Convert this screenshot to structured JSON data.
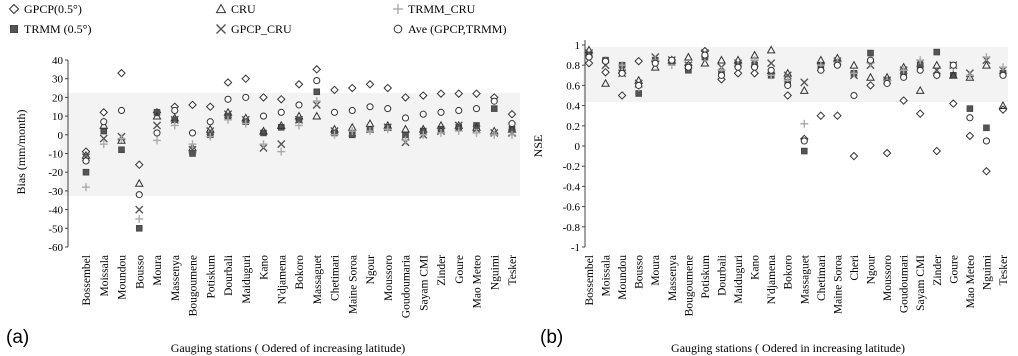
{
  "legend": [
    {
      "key": "gpcp",
      "label": "GPCP(0.5°)",
      "marker": "diamond"
    },
    {
      "key": "trmm",
      "label": "TRMM (0.5°)",
      "marker": "square"
    },
    {
      "key": "cru",
      "label": "CRU",
      "marker": "triangle"
    },
    {
      "key": "gpcp_cru",
      "label": "GPCP_CRU",
      "marker": "x"
    },
    {
      "key": "trmm_cru",
      "label": "TRMM_CRU",
      "marker": "plus"
    },
    {
      "key": "ave",
      "label": "Ave (GPCP,TRMM)",
      "marker": "circle"
    }
  ],
  "chart_data": [
    {
      "type": "scatter",
      "panel_label": "(a)",
      "xlabel": "Gauging stations ( Odered of increasing latitude)",
      "ylabel": "Bias (mm/month)",
      "ylim": [
        -60,
        40
      ],
      "yticks": [
        40,
        30,
        20,
        10,
        0,
        -10,
        -20,
        -30,
        -40,
        -50,
        -60
      ],
      "grid": false,
      "legend_position": "top",
      "categories": [
        "Bossembel",
        "Moissala",
        "Moundou",
        "Bousso",
        "Moura",
        "Massenya",
        "Bougoumene",
        "Potiskum",
        "Dourbali",
        "Maiduguri",
        "Kano",
        "N'djamena",
        "Bokoro",
        "Massaguet",
        "Chetimari",
        "Maine Soroa",
        "Ngour",
        "Moussoro",
        "Goudoumaria",
        "Sayam CMI",
        "Zinder",
        "Goure",
        "Mao Meteo",
        "Nguimi",
        "Tesker"
      ],
      "series": [
        {
          "name": "GPCP(0.5°)",
          "values": [
            -9,
            12,
            33,
            -16,
            12,
            15,
            16,
            15,
            28,
            30,
            20,
            19,
            27,
            35,
            24,
            25,
            27,
            25,
            20,
            21,
            22,
            22,
            22,
            20,
            11
          ]
        },
        {
          "name": "TRMM (0.5°)",
          "values": [
            -20,
            2,
            -8,
            -50,
            12,
            8,
            -10,
            0,
            10,
            7,
            1,
            4,
            8,
            23,
            1,
            0,
            3,
            4,
            0,
            2,
            3,
            4,
            5,
            14,
            3
          ]
        },
        {
          "name": "CRU",
          "values": [
            -11,
            5,
            -3,
            -26,
            10,
            9,
            -7,
            3,
            12,
            9,
            2,
            5,
            10,
            10,
            3,
            4,
            6,
            5,
            3,
            3,
            5,
            5,
            4,
            2,
            3
          ]
        },
        {
          "name": "GPCP_CRU",
          "values": [
            -12,
            -2,
            -1,
            -40,
            5,
            8,
            -8,
            2,
            11,
            8,
            -7,
            -5,
            8,
            16,
            2,
            1,
            3,
            4,
            -4,
            0,
            2,
            5,
            3,
            1,
            1
          ]
        },
        {
          "name": "TRMM_CRU",
          "values": [
            -28,
            -5,
            -2,
            -45,
            -3,
            5,
            -5,
            -1,
            8,
            6,
            -5,
            -9,
            5,
            18,
            0,
            2,
            2,
            3,
            -3,
            0,
            1,
            2,
            1,
            0,
            0
          ]
        },
        {
          "name": "Ave (GPCP,TRMM)",
          "values": [
            -14,
            7,
            13,
            -32,
            1,
            13,
            1,
            7,
            19,
            20,
            10,
            12,
            16,
            29,
            12,
            13,
            15,
            14,
            9,
            11,
            12,
            13,
            14,
            18,
            6
          ]
        }
      ]
    },
    {
      "type": "scatter",
      "panel_label": "(b)",
      "xlabel": "Gauging stations ( Odered in increasing latitude)",
      "ylabel": "NSE",
      "ylim": [
        -1,
        1
      ],
      "yticks": [
        "1",
        "0.8",
        "0.6",
        "0.4",
        "0.2",
        "0",
        "-0.2",
        "-0.4",
        "-0.6",
        "-0.8",
        "-1"
      ],
      "grid": false,
      "categories": [
        "Bossembel",
        "Moissala",
        "Moundou",
        "Bousso",
        "Moura",
        "Massenya",
        "Bougoumene",
        "Potiskum",
        "Dourbali",
        "Maiduguri",
        "Kano",
        "N'djamena",
        "Bokoro",
        "Massaguet",
        "Chetimari",
        "Maine Soroa",
        "Cheri",
        "Ngour",
        "Moussoro",
        "Goudoumari",
        "Sayam CMI",
        "Zinder",
        "Goure",
        "Mao Meteo",
        "Nguimi",
        "Tesker"
      ],
      "series": [
        {
          "name": "GPCP(0.5°)",
          "values": [
            0.82,
            0.73,
            0.5,
            0.84,
            0.84,
            0.85,
            0.8,
            0.94,
            0.66,
            0.72,
            0.72,
            0.72,
            0.5,
            0.07,
            0.3,
            0.3,
            -0.1,
            0.6,
            -0.07,
            0.45,
            0.32,
            -0.05,
            0.42,
            0.1,
            -0.25,
            0.36
          ]
        },
        {
          "name": "TRMM (0.5°)",
          "values": [
            0.9,
            0.85,
            0.8,
            0.52,
            0.85,
            0.83,
            0.75,
            0.88,
            0.72,
            0.8,
            0.8,
            0.7,
            0.63,
            -0.05,
            0.8,
            0.82,
            0.72,
            0.92,
            0.65,
            0.72,
            0.8,
            0.93,
            0.7,
            0.37,
            0.18,
            0.72
          ]
        },
        {
          "name": "CRU",
          "values": [
            0.95,
            0.62,
            0.75,
            0.65,
            0.78,
            0.85,
            0.88,
            0.82,
            0.85,
            0.85,
            0.9,
            0.95,
            0.72,
            0.55,
            0.85,
            0.87,
            0.8,
            0.68,
            0.68,
            0.78,
            0.55,
            0.8,
            0.7,
            0.68,
            0.8,
            0.4
          ]
        },
        {
          "name": "GPCP_CRU",
          "values": [
            0.92,
            0.8,
            0.72,
            0.62,
            0.88,
            0.85,
            0.8,
            0.92,
            0.78,
            0.82,
            0.82,
            0.82,
            0.7,
            0.63,
            0.78,
            0.84,
            0.7,
            0.8,
            0.65,
            0.75,
            0.82,
            0.75,
            0.8,
            0.72,
            0.85,
            0.75
          ]
        },
        {
          "name": "TRMM_CRU",
          "values": [
            0.88,
            0.85,
            0.8,
            0.58,
            0.85,
            0.8,
            0.78,
            0.88,
            0.75,
            0.8,
            0.85,
            0.7,
            0.65,
            0.22,
            0.8,
            0.83,
            0.72,
            0.82,
            0.65,
            0.75,
            0.85,
            0.7,
            0.78,
            0.7,
            0.88,
            0.78
          ]
        },
        {
          "name": "Ave (GPCP,TRMM)",
          "values": [
            0.88,
            0.84,
            0.72,
            0.6,
            0.82,
            0.85,
            0.78,
            0.9,
            0.7,
            0.78,
            0.78,
            0.75,
            0.6,
            0.05,
            0.75,
            0.8,
            0.5,
            0.85,
            0.62,
            0.68,
            0.75,
            0.7,
            0.8,
            0.28,
            0.05,
            0.7
          ]
        }
      ]
    }
  ]
}
